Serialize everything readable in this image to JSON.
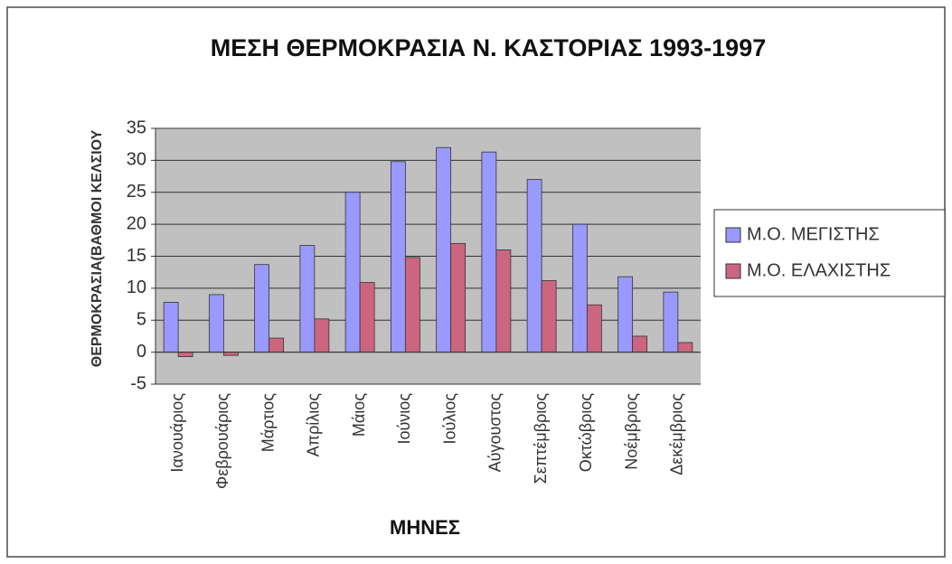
{
  "chart_data": {
    "type": "bar",
    "title": "ΜΕΣΗ ΘΕΡΜΟΚΡΑΣΙΑ Ν. ΚΑΣΤΟΡΙΑΣ 1993-1997",
    "x_label": "ΜΗΝΕΣ",
    "y_label": "ΘΕΡΜΟΚΡΑΣΙΑ(ΒΑΘΜΟΙ ΚΕΛΣΙΟΥ",
    "categories": [
      "Ιανουάριος",
      "Φεβρουάριος",
      "Μάρτιος",
      "Απρίλιος",
      "Μάιος",
      "Ιούνιος",
      "Ιούλιος",
      "Αύγουστος",
      "Σεπτέμβριος",
      "Οκτώβριος",
      "Νοέμβριος",
      "Δεκέμβριος"
    ],
    "series": [
      {
        "name": "Μ.Ο. ΜΕΓΙΣΤΗΣ",
        "color": "#9999ff",
        "values": [
          7.8,
          9,
          13.7,
          16.7,
          25,
          29.8,
          32,
          31.3,
          27,
          20,
          11.8,
          9.4
        ]
      },
      {
        "name": "Μ.Ο. ΕΛΑΧΙΣΤΗΣ",
        "color": "#cc6680",
        "values": [
          -0.7,
          -0.5,
          2.2,
          5.2,
          10.9,
          14.8,
          17,
          16,
          11.2,
          7.4,
          2.5,
          1.5
        ]
      }
    ],
    "ylim": [
      -5,
      35
    ],
    "yticks": [
      -5,
      0,
      5,
      10,
      15,
      20,
      25,
      30,
      35
    ],
    "grid": true,
    "legend": "right"
  }
}
